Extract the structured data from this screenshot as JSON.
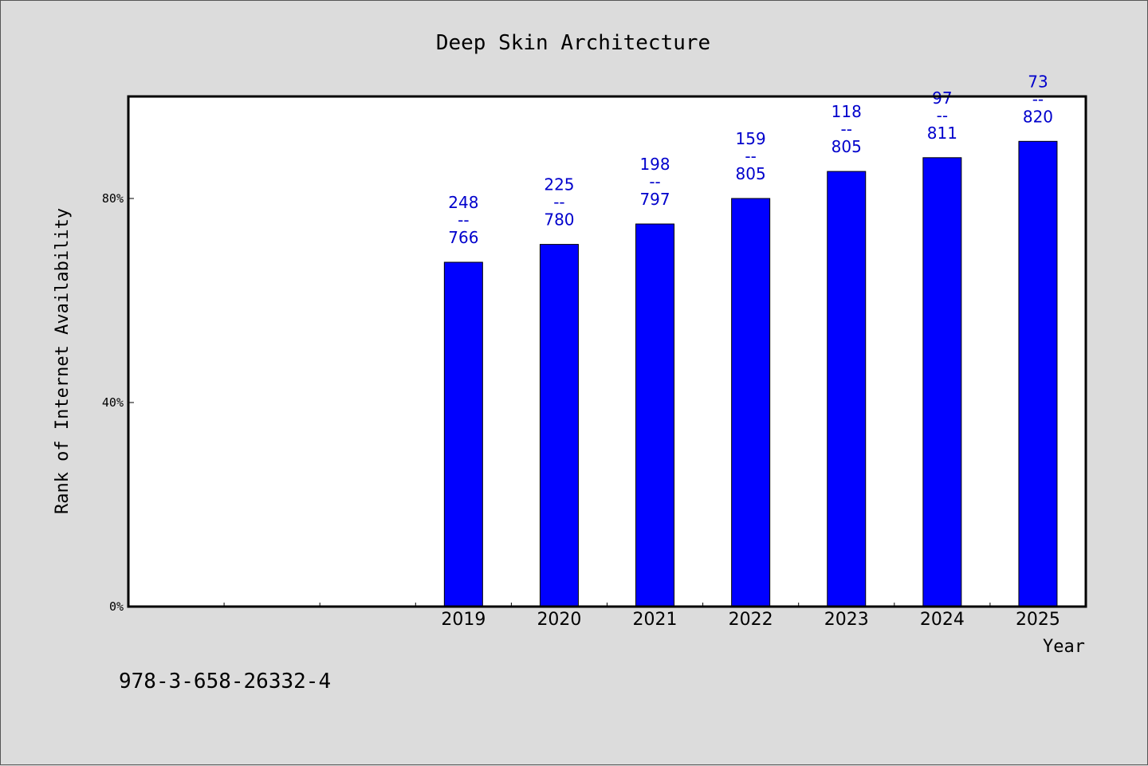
{
  "chart_data": {
    "type": "bar",
    "title": "Deep Skin Architecture",
    "xlabel": "Year",
    "ylabel": "Rank of Internet Availability",
    "categories": [
      "",
      "",
      "",
      "2019",
      "2020",
      "2021",
      "2022",
      "2023",
      "2024",
      "2025"
    ],
    "values": [
      null,
      null,
      null,
      67.5,
      71,
      75,
      80,
      85.3,
      88,
      91.2
    ],
    "data_labels": [
      null,
      null,
      null,
      {
        "top": "248",
        "sep": "--",
        "bottom": "766"
      },
      {
        "top": "225",
        "sep": "--",
        "bottom": "780"
      },
      {
        "top": "198",
        "sep": "--",
        "bottom": "797"
      },
      {
        "top": "159",
        "sep": "--",
        "bottom": "805"
      },
      {
        "top": "118",
        "sep": "--",
        "bottom": "805"
      },
      {
        "top": "97",
        "sep": "--",
        "bottom": "811"
      },
      {
        "top": "73",
        "sep": "--",
        "bottom": "820"
      }
    ],
    "ylim": [
      0,
      100
    ],
    "yticks": [
      0,
      40,
      80
    ],
    "ytick_labels": [
      "0%",
      "40%",
      "80%"
    ],
    "grid": false,
    "bar_color": "#0000ff",
    "label_color": "#0000cc",
    "background": "#dcdcdc",
    "plot_background": "#ffffff"
  },
  "footer": {
    "isbn": "978-3-658-26332-4"
  }
}
